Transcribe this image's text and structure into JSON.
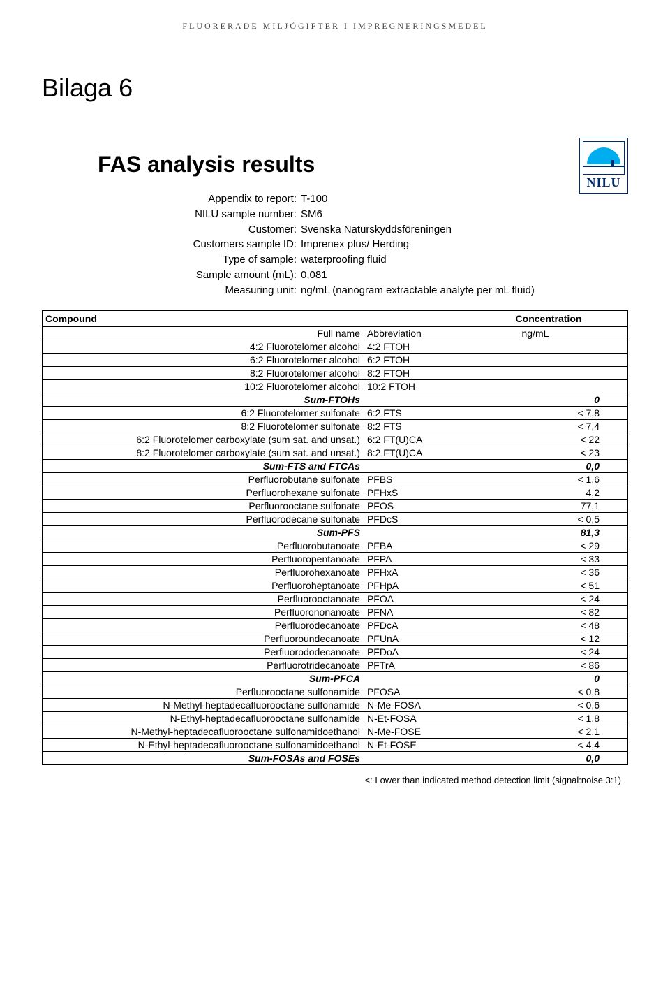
{
  "running_head": "FLUORERADE MILJÖGIFTER I IMPREGNERINGSMEDEL",
  "bilaga": "Bilaga 6",
  "logo_text": "NILU",
  "title": "FAS analysis results",
  "meta": [
    {
      "label": "Appendix to report:",
      "value": "T-100"
    },
    {
      "label": "NILU sample number:",
      "value": "SM6"
    },
    {
      "label": "Customer:",
      "value": "Svenska Naturskyddsföreningen"
    },
    {
      "label": "Customers sample ID:",
      "value": "Imprenex plus/ Herding"
    },
    {
      "label": "Type of sample:",
      "value": "waterproofing fluid"
    },
    {
      "label": "Sample amount (mL):",
      "value": "0,081"
    },
    {
      "label": "Measuring unit:",
      "value": "ng/mL (nanogram extractable analyte per mL fluid)"
    }
  ],
  "head": {
    "compound": "Compound",
    "concentration": "Concentration",
    "fullname": "Full name",
    "abbr": "Abbreviation",
    "unit": "ng/mL"
  },
  "rows": [
    {
      "name": "4:2 Fluorotelomer alcohol",
      "abbr": "4:2 FTOH",
      "conc": ""
    },
    {
      "name": "6:2 Fluorotelomer alcohol",
      "abbr": "6:2 FTOH",
      "conc": ""
    },
    {
      "name": "8:2 Fluorotelomer alcohol",
      "abbr": "8:2 FTOH",
      "conc": ""
    },
    {
      "name": "10:2 Fluorotelomer alcohol",
      "abbr": "10:2 FTOH",
      "conc": ""
    },
    {
      "name": "Sum-FTOHs",
      "abbr": "",
      "conc": "0",
      "sum": true
    },
    {
      "name": "6:2 Fluorotelomer sulfonate",
      "abbr": "6:2 FTS",
      "conc": "< 7,8"
    },
    {
      "name": "8:2 Fluorotelomer sulfonate",
      "abbr": "8:2 FTS",
      "conc": "< 7,4"
    },
    {
      "name": "6:2 Fluorotelomer carboxylate (sum sat. and unsat.)",
      "abbr": "6:2 FT(U)CA",
      "conc": "< 22"
    },
    {
      "name": "8:2 Fluorotelomer carboxylate (sum sat. and unsat.)",
      "abbr": "8:2 FT(U)CA",
      "conc": "< 23"
    },
    {
      "name": "Sum-FTS and FTCAs",
      "abbr": "",
      "conc": "0,0",
      "sum": true
    },
    {
      "name": "Perfluorobutane sulfonate",
      "abbr": "PFBS",
      "conc": "< 1,6"
    },
    {
      "name": "Perfluorohexane sulfonate",
      "abbr": "PFHxS",
      "conc": "4,2"
    },
    {
      "name": "Perfluorooctane sulfonate",
      "abbr": "PFOS",
      "conc": "77,1"
    },
    {
      "name": "Perfluorodecane sulfonate",
      "abbr": "PFDcS",
      "conc": "< 0,5"
    },
    {
      "name": "Sum-PFS",
      "abbr": "",
      "conc": "81,3",
      "sum": true
    },
    {
      "name": "Perfluorobutanoate",
      "abbr": "PFBA",
      "conc": "< 29"
    },
    {
      "name": "Perfluoropentanoate",
      "abbr": "PFPA",
      "conc": "< 33"
    },
    {
      "name": "Perfluorohexanoate",
      "abbr": "PFHxA",
      "conc": "< 36"
    },
    {
      "name": "Perfluoroheptanoate",
      "abbr": "PFHpA",
      "conc": "< 51"
    },
    {
      "name": "Perfluorooctanoate",
      "abbr": "PFOA",
      "conc": "< 24"
    },
    {
      "name": "Perfluorononanoate",
      "abbr": "PFNA",
      "conc": "< 82"
    },
    {
      "name": "Perfluorodecanoate",
      "abbr": "PFDcA",
      "conc": "< 48"
    },
    {
      "name": "Perfluoroundecanoate",
      "abbr": "PFUnA",
      "conc": "< 12"
    },
    {
      "name": "Perfluorododecanoate",
      "abbr": "PFDoA",
      "conc": "< 24"
    },
    {
      "name": "Perfluorotridecanoate",
      "abbr": "PFTrA",
      "conc": "< 86"
    },
    {
      "name": "Sum-PFCA",
      "abbr": "",
      "conc": "0",
      "sum": true
    },
    {
      "name": "Perfluorooctane sulfonamide",
      "abbr": "PFOSA",
      "conc": "< 0,8"
    },
    {
      "name": "N-Methyl-heptadecafluorooctane sulfonamide",
      "abbr": "N-Me-FOSA",
      "conc": "< 0,6"
    },
    {
      "name": "N-Ethyl-heptadecafluorooctane sulfonamide",
      "abbr": "N-Et-FOSA",
      "conc": "< 1,8"
    },
    {
      "name": "N-Methyl-heptadecafluorooctane sulfonamidoethanol",
      "abbr": "N-Me-FOSE",
      "conc": "< 2,1"
    },
    {
      "name": "N-Ethyl-heptadecafluorooctane sulfonamidoethanol",
      "abbr": "N-Et-FOSE",
      "conc": "< 4,4"
    },
    {
      "name": "Sum-FOSAs and FOSEs",
      "abbr": "",
      "conc": "0,0",
      "sum": true
    }
  ],
  "footnote": "<: Lower than indicated method detection limit (signal:noise 3:1)"
}
